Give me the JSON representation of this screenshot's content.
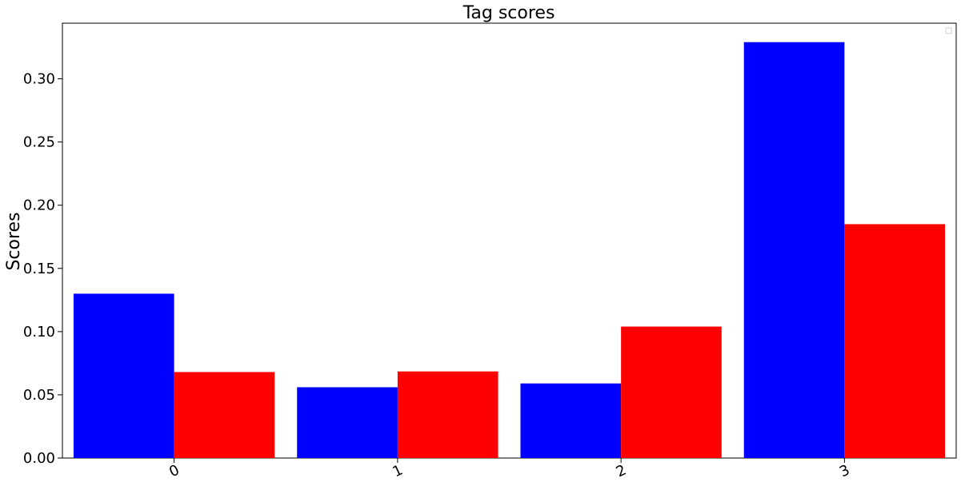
{
  "chart_data": {
    "type": "bar",
    "title": "Tag scores",
    "xlabel": "",
    "ylabel": "Scores",
    "categories": [
      "0",
      "1",
      "2",
      "3"
    ],
    "series": [
      {
        "values": [
          0.13,
          0.056,
          0.059,
          0.329
        ]
      },
      {
        "values": [
          0.068,
          0.0685,
          0.104,
          0.185
        ]
      }
    ],
    "colors": [
      "#0000ff",
      "#ff0000"
    ],
    "ylim": [
      0,
      0.344
    ],
    "yticks": [
      "0.00",
      "0.05",
      "0.10",
      "0.15",
      "0.20",
      "0.25",
      "0.30"
    ],
    "ytick_values": [
      0,
      0.05,
      0.1,
      0.15,
      0.2,
      0.25,
      0.3
    ],
    "grid": false,
    "legend": "top-right (empty)"
  }
}
